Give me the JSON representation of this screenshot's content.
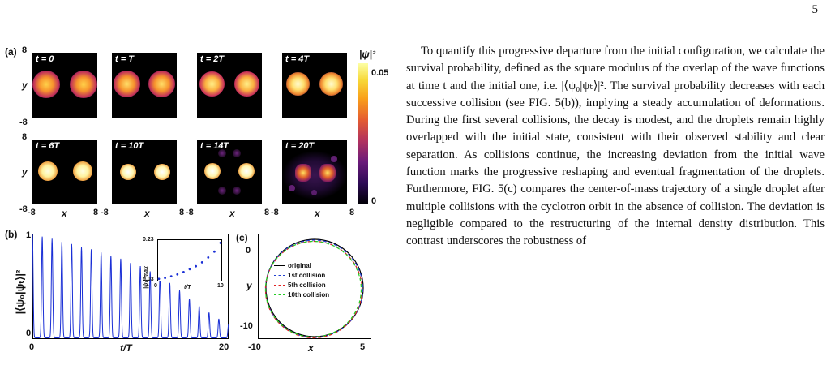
{
  "page_number": "5",
  "figure": {
    "panel_a": {
      "letter": "(a)",
      "tiles": [
        {
          "label": "t = 0"
        },
        {
          "label": "t = T"
        },
        {
          "label": "t = 2T"
        },
        {
          "label": "t = 4T"
        },
        {
          "label": "t = 6T"
        },
        {
          "label": "t = 10T"
        },
        {
          "label": "t = 14T"
        },
        {
          "label": "t = 20T"
        }
      ],
      "y_ticks": {
        "top": "8",
        "bottom": "-8"
      },
      "x_ticks": {
        "left": "-8",
        "right": "8"
      },
      "xlabel": "x",
      "ylabel": "y",
      "colorbar": {
        "label": "|ψ|²",
        "max": "0.05",
        "min": "0"
      }
    },
    "panel_b": {
      "letter": "(b)",
      "ylabel": "|⟨ψ₀|ψₜ⟩|²",
      "xlabel": "t/T",
      "y_ticks": [
        "0",
        "1"
      ],
      "x_ticks": [
        "0",
        "10",
        "20"
      ],
      "inset": {
        "ylabel": "|ψₜ|²max",
        "xlabel": "t/T",
        "y_ticks": [
          "0.03",
          "0.23"
        ],
        "x_ticks": [
          "0",
          "10"
        ]
      }
    },
    "panel_c": {
      "letter": "(c)",
      "xlabel": "x",
      "ylabel": "y",
      "x_ticks": [
        "-10",
        "5"
      ],
      "y_ticks": [
        "0",
        "-10"
      ],
      "legend": [
        {
          "name": "original",
          "color": "#000000",
          "style": "solid"
        },
        {
          "name": "1st collision",
          "color": "#1f3fd0",
          "style": "dashed"
        },
        {
          "name": "5th collision",
          "color": "#e02020",
          "style": "dashed"
        },
        {
          "name": "10th collision",
          "color": "#22cc22",
          "style": "dashed"
        }
      ]
    }
  },
  "chart_data": [
    {
      "type": "line",
      "panel": "(b)",
      "xlabel": "t/T",
      "ylabel": "|⟨ψ₀|ψₜ⟩|²",
      "xlim": [
        0,
        20
      ],
      "ylim": [
        0,
        1
      ],
      "series": [
        {
          "color": "#1a2fd6",
          "x": [
            0,
            1,
            2,
            3,
            4,
            5,
            6,
            7,
            8,
            9,
            10,
            11,
            12,
            13,
            14,
            15,
            16,
            17,
            18,
            19,
            20
          ],
          "values": [
            1.0,
            0.96,
            0.94,
            0.91,
            0.89,
            0.86,
            0.84,
            0.81,
            0.78,
            0.75,
            0.71,
            0.68,
            0.63,
            0.59,
            0.52,
            0.45,
            0.37,
            0.3,
            0.24,
            0.18,
            0.13
          ]
        }
      ]
    },
    {
      "type": "scatter",
      "panel": "(b) inset",
      "xlabel": "t/T",
      "ylabel": "|ψₜ|²max",
      "xlim": [
        0,
        10
      ],
      "ylim": [
        0.03,
        0.23
      ],
      "series": [
        {
          "color": "#1a2fd6",
          "x": [
            0,
            1,
            2,
            3,
            4,
            5,
            6,
            7,
            8,
            9,
            10
          ],
          "values": [
            0.035,
            0.04,
            0.048,
            0.058,
            0.07,
            0.085,
            0.1,
            0.12,
            0.145,
            0.175,
            0.22
          ]
        }
      ]
    }
  ],
  "body_text": "To quantify this progressive departure from the initial configuration, we calculate the survival probability, defined as the square modulus of the overlap of the wave functions at time t and the initial one, i.e. |⟨ψ₀|ψₜ⟩|². The survival probability decreases with each successive collision (see FIG. 5(b)), implying a steady accumulation of deformations. During the first several collisions, the decay is modest, and the droplets remain highly overlapped with the initial state, consistent with their observed stability and clear separation. As collisions continue, the increasing deviation from the initial wave function marks the progressive reshaping and eventual fragmentation of the droplets. Furthermore, FIG. 5(c) compares the center-of-mass trajectory of a single droplet after multiple collisions with the cyclotron orbit in the absence of collision. The deviation is negligible compared to the restructuring of the internal density distribution. This contrast underscores the robustness of"
}
